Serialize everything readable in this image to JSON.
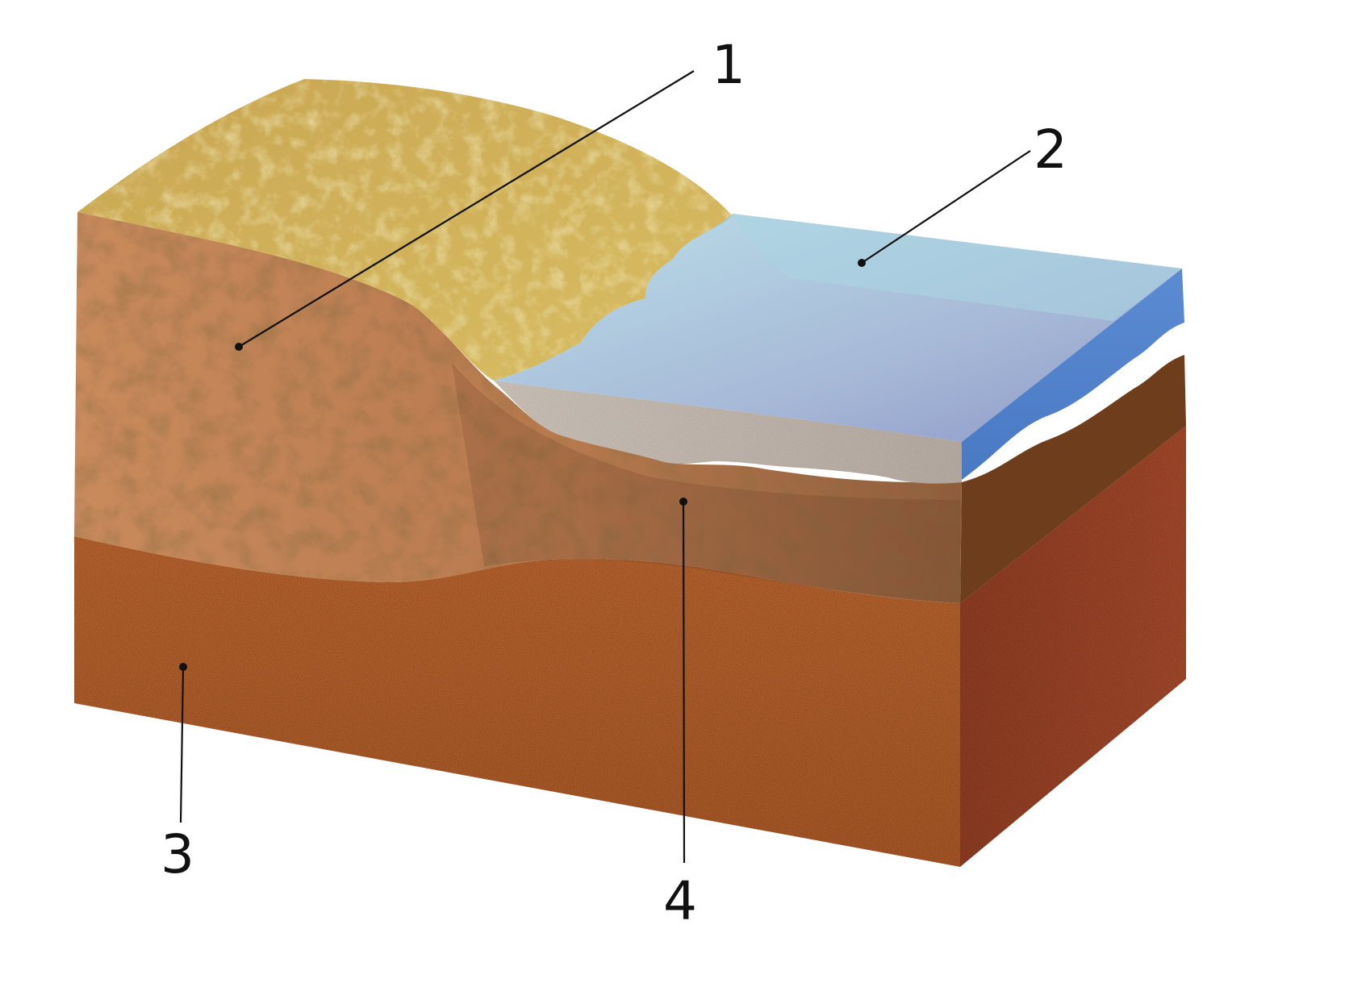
{
  "callouts": [
    {
      "id": "1",
      "label": "1"
    },
    {
      "id": "2",
      "label": "2"
    },
    {
      "id": "3",
      "label": "3"
    },
    {
      "id": "4",
      "label": "4"
    }
  ]
}
